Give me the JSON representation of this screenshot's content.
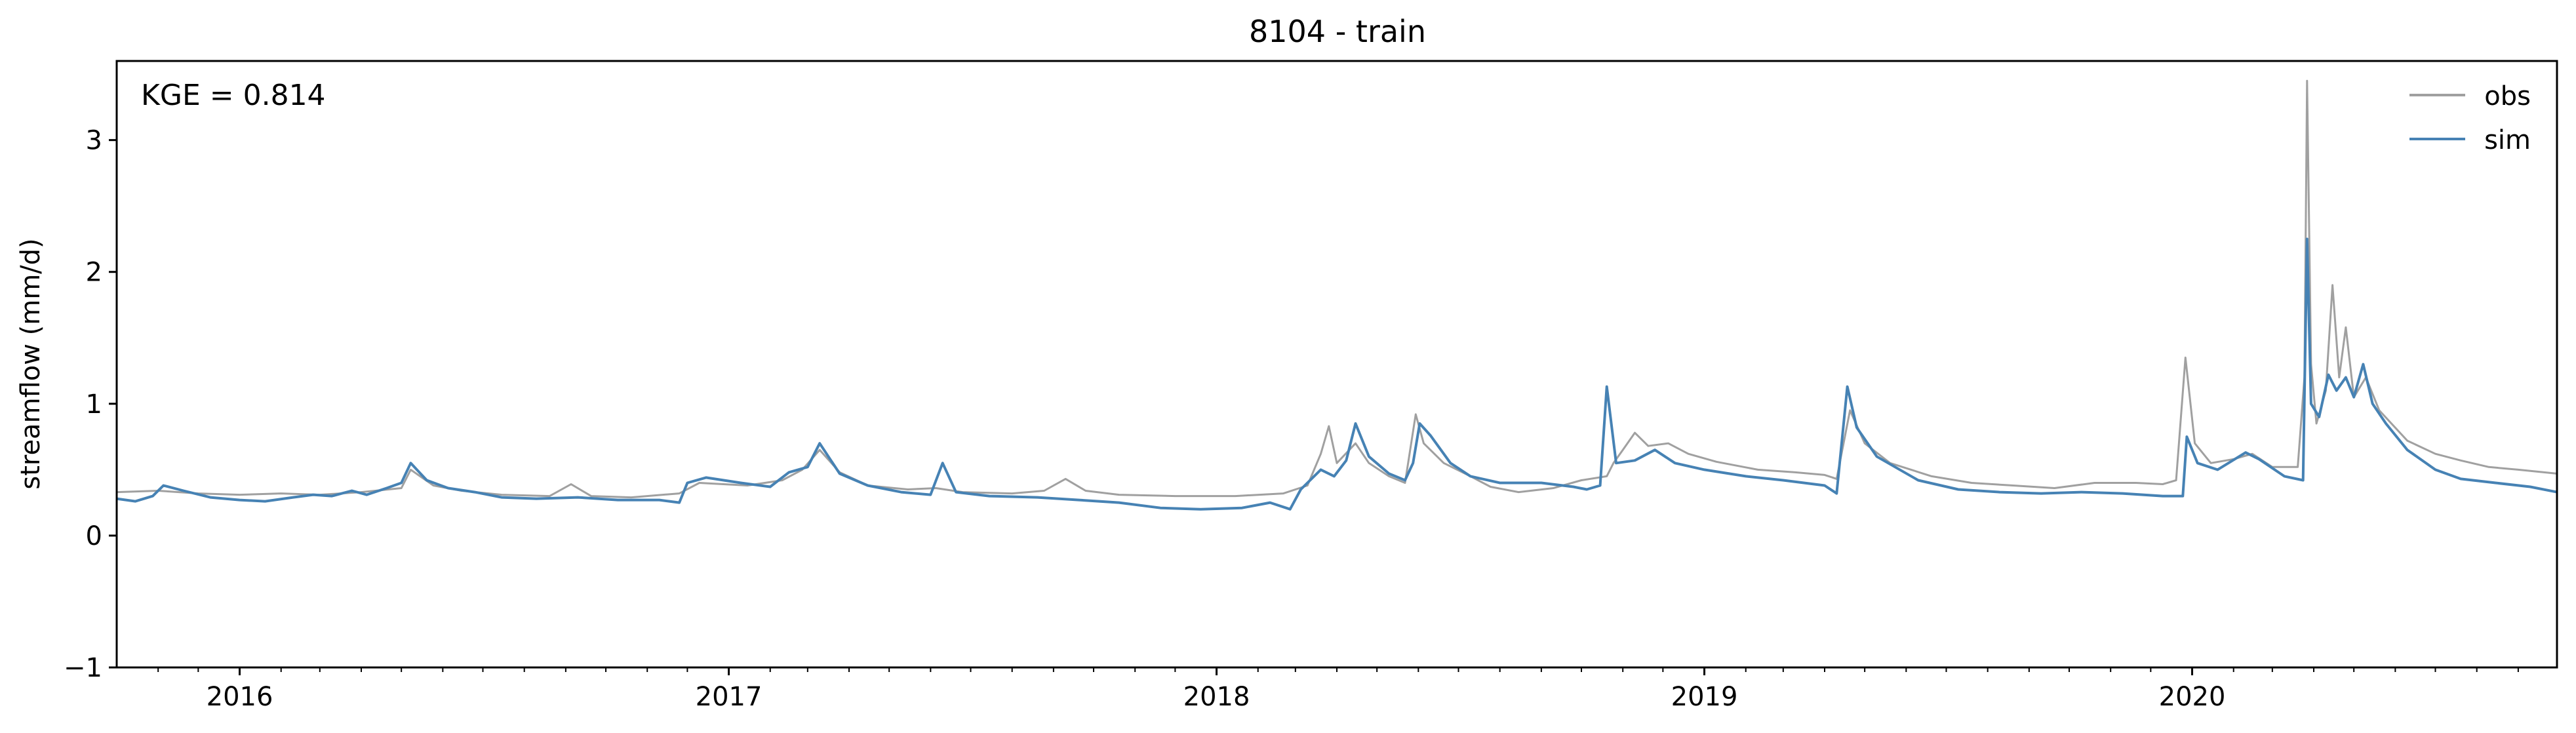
{
  "chart_data": {
    "type": "line",
    "title": "8104 - train",
    "xlabel": "",
    "ylabel": "streamflow (mm/d)",
    "annotation": "KGE = 0.814",
    "x_range": [
      "2015-10-01",
      "2020-09-30"
    ],
    "ylim": [
      -1,
      3.6
    ],
    "y_ticks": [
      -1,
      0,
      1,
      2,
      3
    ],
    "x_ticks": [
      {
        "date": "2016-01-01",
        "label": "2016"
      },
      {
        "date": "2017-01-01",
        "label": "2017"
      },
      {
        "date": "2018-01-01",
        "label": "2018"
      },
      {
        "date": "2019-01-01",
        "label": "2019"
      },
      {
        "date": "2020-01-01",
        "label": "2020"
      }
    ],
    "grid": false,
    "legend_position": "top-right",
    "series": [
      {
        "name": "obs",
        "color": "#a0a0a0",
        "points": [
          [
            "2015-10-01",
            0.33
          ],
          [
            "2015-11-01",
            0.34
          ],
          [
            "2015-12-01",
            0.32
          ],
          [
            "2016-01-01",
            0.31
          ],
          [
            "2016-02-01",
            0.32
          ],
          [
            "2016-03-01",
            0.31
          ],
          [
            "2016-04-01",
            0.33
          ],
          [
            "2016-05-01",
            0.36
          ],
          [
            "2016-05-08",
            0.5
          ],
          [
            "2016-05-25",
            0.38
          ],
          [
            "2016-06-15",
            0.34
          ],
          [
            "2016-07-15",
            0.31
          ],
          [
            "2016-08-20",
            0.3
          ],
          [
            "2016-09-05",
            0.39
          ],
          [
            "2016-09-20",
            0.3
          ],
          [
            "2016-10-20",
            0.29
          ],
          [
            "2016-11-25",
            0.32
          ],
          [
            "2016-12-10",
            0.4
          ],
          [
            "2017-01-15",
            0.38
          ],
          [
            "2017-02-10",
            0.42
          ],
          [
            "2017-02-25",
            0.5
          ],
          [
            "2017-03-10",
            0.65
          ],
          [
            "2017-03-25",
            0.48
          ],
          [
            "2017-04-15",
            0.38
          ],
          [
            "2017-05-15",
            0.35
          ],
          [
            "2017-06-05",
            0.36
          ],
          [
            "2017-06-25",
            0.33
          ],
          [
            "2017-08-01",
            0.32
          ],
          [
            "2017-08-25",
            0.34
          ],
          [
            "2017-09-10",
            0.43
          ],
          [
            "2017-09-25",
            0.34
          ],
          [
            "2017-10-20",
            0.31
          ],
          [
            "2017-12-01",
            0.3
          ],
          [
            "2018-01-15",
            0.3
          ],
          [
            "2018-02-20",
            0.32
          ],
          [
            "2018-03-10",
            0.38
          ],
          [
            "2018-03-20",
            0.62
          ],
          [
            "2018-03-26",
            0.83
          ],
          [
            "2018-04-01",
            0.55
          ],
          [
            "2018-04-15",
            0.7
          ],
          [
            "2018-04-25",
            0.55
          ],
          [
            "2018-05-10",
            0.45
          ],
          [
            "2018-05-22",
            0.4
          ],
          [
            "2018-05-30",
            0.92
          ],
          [
            "2018-06-05",
            0.7
          ],
          [
            "2018-06-20",
            0.55
          ],
          [
            "2018-07-10",
            0.45
          ],
          [
            "2018-07-25",
            0.37
          ],
          [
            "2018-08-15",
            0.33
          ],
          [
            "2018-09-10",
            0.36
          ],
          [
            "2018-10-01",
            0.42
          ],
          [
            "2018-10-20",
            0.45
          ],
          [
            "2018-10-25",
            0.55
          ],
          [
            "2018-11-01",
            0.65
          ],
          [
            "2018-11-10",
            0.78
          ],
          [
            "2018-11-20",
            0.68
          ],
          [
            "2018-12-05",
            0.7
          ],
          [
            "2018-12-20",
            0.62
          ],
          [
            "2019-01-10",
            0.56
          ],
          [
            "2019-02-10",
            0.5
          ],
          [
            "2019-03-10",
            0.48
          ],
          [
            "2019-04-01",
            0.46
          ],
          [
            "2019-04-10",
            0.43
          ],
          [
            "2019-04-20",
            0.95
          ],
          [
            "2019-05-01",
            0.7
          ],
          [
            "2019-05-20",
            0.55
          ],
          [
            "2019-06-20",
            0.45
          ],
          [
            "2019-07-20",
            0.4
          ],
          [
            "2019-08-20",
            0.38
          ],
          [
            "2019-09-20",
            0.36
          ],
          [
            "2019-10-20",
            0.4
          ],
          [
            "2019-11-20",
            0.4
          ],
          [
            "2019-12-10",
            0.39
          ],
          [
            "2019-12-20",
            0.42
          ],
          [
            "2019-12-27",
            1.35
          ],
          [
            "2020-01-03",
            0.7
          ],
          [
            "2020-01-15",
            0.55
          ],
          [
            "2020-02-01",
            0.58
          ],
          [
            "2020-02-15",
            0.62
          ],
          [
            "2020-03-01",
            0.52
          ],
          [
            "2020-03-20",
            0.52
          ],
          [
            "2020-03-25",
            1.2
          ],
          [
            "2020-03-27",
            3.45
          ],
          [
            "2020-03-30",
            1.3
          ],
          [
            "2020-04-03",
            0.85
          ],
          [
            "2020-04-10",
            1.1
          ],
          [
            "2020-04-15",
            1.9
          ],
          [
            "2020-04-20",
            1.2
          ],
          [
            "2020-04-25",
            1.58
          ],
          [
            "2020-05-01",
            1.05
          ],
          [
            "2020-05-10",
            1.2
          ],
          [
            "2020-05-20",
            0.95
          ],
          [
            "2020-06-10",
            0.72
          ],
          [
            "2020-07-01",
            0.62
          ],
          [
            "2020-07-20",
            0.57
          ],
          [
            "2020-08-10",
            0.52
          ],
          [
            "2020-09-01",
            0.5
          ],
          [
            "2020-09-30",
            0.47
          ]
        ]
      },
      {
        "name": "sim",
        "color": "#4682b4",
        "points": [
          [
            "2015-10-01",
            0.28
          ],
          [
            "2015-10-15",
            0.26
          ],
          [
            "2015-10-28",
            0.3
          ],
          [
            "2015-11-05",
            0.38
          ],
          [
            "2015-11-20",
            0.34
          ],
          [
            "2015-12-10",
            0.29
          ],
          [
            "2016-01-01",
            0.27
          ],
          [
            "2016-01-20",
            0.26
          ],
          [
            "2016-02-10",
            0.29
          ],
          [
            "2016-02-25",
            0.31
          ],
          [
            "2016-03-10",
            0.3
          ],
          [
            "2016-03-25",
            0.34
          ],
          [
            "2016-04-05",
            0.31
          ],
          [
            "2016-04-20",
            0.36
          ],
          [
            "2016-05-01",
            0.4
          ],
          [
            "2016-05-08",
            0.55
          ],
          [
            "2016-05-20",
            0.42
          ],
          [
            "2016-06-05",
            0.36
          ],
          [
            "2016-06-25",
            0.33
          ],
          [
            "2016-07-15",
            0.29
          ],
          [
            "2016-08-10",
            0.28
          ],
          [
            "2016-09-10",
            0.29
          ],
          [
            "2016-10-10",
            0.27
          ],
          [
            "2016-11-10",
            0.27
          ],
          [
            "2016-11-25",
            0.25
          ],
          [
            "2016-12-01",
            0.4
          ],
          [
            "2016-12-15",
            0.44
          ],
          [
            "2017-01-10",
            0.4
          ],
          [
            "2017-02-01",
            0.37
          ],
          [
            "2017-02-15",
            0.48
          ],
          [
            "2017-03-01",
            0.52
          ],
          [
            "2017-03-10",
            0.7
          ],
          [
            "2017-03-25",
            0.47
          ],
          [
            "2017-04-15",
            0.38
          ],
          [
            "2017-05-10",
            0.33
          ],
          [
            "2017-06-01",
            0.31
          ],
          [
            "2017-06-10",
            0.55
          ],
          [
            "2017-06-20",
            0.33
          ],
          [
            "2017-07-15",
            0.3
          ],
          [
            "2017-08-20",
            0.29
          ],
          [
            "2017-09-20",
            0.27
          ],
          [
            "2017-10-20",
            0.25
          ],
          [
            "2017-11-20",
            0.21
          ],
          [
            "2017-12-20",
            0.2
          ],
          [
            "2018-01-20",
            0.21
          ],
          [
            "2018-02-10",
            0.25
          ],
          [
            "2018-02-25",
            0.2
          ],
          [
            "2018-03-05",
            0.35
          ],
          [
            "2018-03-20",
            0.5
          ],
          [
            "2018-03-30",
            0.45
          ],
          [
            "2018-04-08",
            0.57
          ],
          [
            "2018-04-15",
            0.85
          ],
          [
            "2018-04-25",
            0.6
          ],
          [
            "2018-05-10",
            0.47
          ],
          [
            "2018-05-22",
            0.42
          ],
          [
            "2018-05-28",
            0.55
          ],
          [
            "2018-06-02",
            0.85
          ],
          [
            "2018-06-10",
            0.76
          ],
          [
            "2018-06-25",
            0.55
          ],
          [
            "2018-07-10",
            0.45
          ],
          [
            "2018-08-01",
            0.4
          ],
          [
            "2018-09-01",
            0.4
          ],
          [
            "2018-09-25",
            0.37
          ],
          [
            "2018-10-05",
            0.35
          ],
          [
            "2018-10-15",
            0.38
          ],
          [
            "2018-10-20",
            1.13
          ],
          [
            "2018-10-27",
            0.55
          ],
          [
            "2018-11-10",
            0.57
          ],
          [
            "2018-11-25",
            0.65
          ],
          [
            "2018-12-10",
            0.55
          ],
          [
            "2019-01-01",
            0.5
          ],
          [
            "2019-02-01",
            0.45
          ],
          [
            "2019-03-01",
            0.42
          ],
          [
            "2019-04-01",
            0.38
          ],
          [
            "2019-04-10",
            0.32
          ],
          [
            "2019-04-18",
            1.13
          ],
          [
            "2019-04-25",
            0.82
          ],
          [
            "2019-05-10",
            0.6
          ],
          [
            "2019-06-10",
            0.42
          ],
          [
            "2019-07-10",
            0.35
          ],
          [
            "2019-08-10",
            0.33
          ],
          [
            "2019-09-10",
            0.32
          ],
          [
            "2019-10-10",
            0.33
          ],
          [
            "2019-11-10",
            0.32
          ],
          [
            "2019-12-10",
            0.3
          ],
          [
            "2019-12-25",
            0.3
          ],
          [
            "2019-12-28",
            0.75
          ],
          [
            "2020-01-05",
            0.55
          ],
          [
            "2020-01-20",
            0.5
          ],
          [
            "2020-02-10",
            0.63
          ],
          [
            "2020-02-20",
            0.58
          ],
          [
            "2020-03-10",
            0.45
          ],
          [
            "2020-03-24",
            0.42
          ],
          [
            "2020-03-27",
            2.25
          ],
          [
            "2020-03-30",
            1.0
          ],
          [
            "2020-04-05",
            0.9
          ],
          [
            "2020-04-12",
            1.22
          ],
          [
            "2020-04-18",
            1.1
          ],
          [
            "2020-04-25",
            1.2
          ],
          [
            "2020-05-01",
            1.05
          ],
          [
            "2020-05-08",
            1.3
          ],
          [
            "2020-05-15",
            1.0
          ],
          [
            "2020-05-25",
            0.85
          ],
          [
            "2020-06-10",
            0.65
          ],
          [
            "2020-07-01",
            0.5
          ],
          [
            "2020-07-20",
            0.43
          ],
          [
            "2020-08-15",
            0.4
          ],
          [
            "2020-09-10",
            0.37
          ],
          [
            "2020-09-30",
            0.33
          ]
        ]
      }
    ]
  }
}
